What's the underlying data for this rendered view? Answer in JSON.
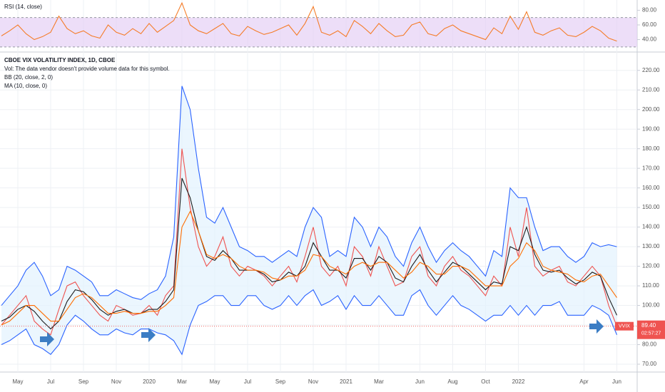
{
  "chart_data": [
    {
      "type": "line",
      "title": "RSI (14, close)",
      "ylim": [
        24,
        94
      ],
      "yticks": [
        {
          "value": 40,
          "label": "40.00"
        },
        {
          "value": 60,
          "label": "60.00"
        },
        {
          "value": 80,
          "label": "80.00"
        }
      ],
      "band": [
        30,
        70
      ],
      "band_color": "#e6d0f5",
      "series": [
        {
          "name": "RSI",
          "color": "#f57c28",
          "values": [
            45,
            52,
            60,
            48,
            40,
            44,
            50,
            72,
            55,
            48,
            52,
            45,
            42,
            60,
            50,
            46,
            55,
            48,
            62,
            50,
            58,
            66,
            90,
            60,
            52,
            48,
            55,
            62,
            48,
            45,
            58,
            52,
            47,
            50,
            55,
            60,
            46,
            62,
            85,
            50,
            46,
            52,
            44,
            66,
            58,
            48,
            62,
            52,
            44,
            46,
            60,
            64,
            48,
            45,
            55,
            60,
            52,
            48,
            44,
            40,
            56,
            48,
            72,
            54,
            78,
            50,
            46,
            52,
            56,
            46,
            44,
            50,
            58,
            52,
            42,
            38
          ]
        }
      ],
      "grid": true
    },
    {
      "type": "line",
      "title": "CBOE VIX VOLATILITY INDEX, 1D, CBOE",
      "subtitles": [
        "Vol: The data vendor doesn't provide volume data for this symbol.",
        "BB (20, close, 2, 0)",
        "MA (10, close, 0)"
      ],
      "categories": [
        null,
        null,
        "May",
        null,
        null,
        null,
        "Jul",
        null,
        null,
        null,
        "Sep",
        null,
        null,
        null,
        "Nov",
        null,
        null,
        null,
        "2020",
        null,
        null,
        null,
        "Mar",
        null,
        null,
        null,
        "May",
        null,
        null,
        null,
        "Jul",
        null,
        null,
        null,
        "Sep",
        null,
        null,
        null,
        "Nov",
        null,
        null,
        null,
        "2021",
        null,
        null,
        null,
        "Mar",
        null,
        null,
        null,
        null,
        "Jun",
        null,
        null,
        null,
        "Aug",
        null,
        null,
        null,
        "Oct",
        null,
        null,
        null,
        "2022",
        null,
        null,
        null,
        null,
        null,
        null,
        null,
        "Apr",
        null,
        null,
        null,
        "Jun"
      ],
      "ylim": [
        66,
        229
      ],
      "yticks": [
        {
          "value": 70,
          "label": "70.00"
        },
        {
          "value": 80,
          "label": "80.00"
        },
        {
          "value": 90,
          "label": "90.00"
        },
        {
          "value": 100,
          "label": "100.00"
        },
        {
          "value": 110,
          "label": "110.00"
        },
        {
          "value": 120,
          "label": "120.00"
        },
        {
          "value": 130,
          "label": "130.00"
        },
        {
          "value": 140,
          "label": "140.00"
        },
        {
          "value": 150,
          "label": "150.00"
        },
        {
          "value": 160,
          "label": "160.00"
        },
        {
          "value": 170,
          "label": "170.00"
        },
        {
          "value": 180,
          "label": "180.00"
        },
        {
          "value": 190,
          "label": "190.00"
        },
        {
          "value": 200,
          "label": "200.00"
        },
        {
          "value": 210,
          "label": "210.00"
        },
        {
          "value": 220,
          "label": "220.00"
        }
      ],
      "grid": true,
      "band_fill": "#e3f2fd",
      "series": [
        {
          "name": "VVIX",
          "color": "#ef5350",
          "values": [
            90,
            95,
            100,
            105,
            92,
            88,
            85,
            98,
            110,
            112,
            105,
            100,
            95,
            92,
            100,
            98,
            95,
            96,
            100,
            95,
            105,
            110,
            180,
            150,
            130,
            120,
            125,
            135,
            120,
            115,
            120,
            118,
            115,
            110,
            115,
            120,
            112,
            125,
            140,
            120,
            115,
            120,
            110,
            130,
            125,
            115,
            130,
            120,
            110,
            112,
            125,
            130,
            115,
            110,
            120,
            125,
            118,
            115,
            110,
            105,
            115,
            110,
            140,
            125,
            150,
            120,
            115,
            118,
            120,
            112,
            110,
            115,
            120,
            115,
            100,
            89.4
          ],
          "value_labels": [
            null,
            null,
            null,
            null,
            null,
            null,
            null,
            null,
            null,
            null,
            null,
            null,
            null,
            null,
            null,
            null,
            null,
            null,
            null,
            null,
            null,
            null,
            null,
            null,
            null,
            null,
            null,
            null,
            null,
            null,
            null,
            null,
            null,
            null,
            null,
            null,
            null,
            null,
            null,
            null,
            null,
            null,
            null,
            null,
            null,
            null,
            null,
            null,
            null,
            null,
            null,
            null,
            null,
            null,
            null,
            null,
            null,
            null,
            null,
            null,
            null,
            null,
            null,
            null,
            null,
            null,
            null,
            null,
            null,
            null,
            null,
            null,
            null,
            null,
            null,
            "89.40"
          ],
          "countdown": "02:57:27"
        },
        {
          "name": "MA",
          "color": "#1b1b1b",
          "values": [
            92,
            94,
            98,
            100,
            97,
            92,
            88,
            92,
            102,
            108,
            107,
            103,
            98,
            95,
            97,
            98,
            96,
            96,
            98,
            98,
            102,
            108,
            165,
            155,
            138,
            125,
            123,
            128,
            124,
            118,
            118,
            118,
            116,
            112,
            113,
            117,
            115,
            120,
            132,
            125,
            118,
            118,
            114,
            124,
            124,
            118,
            125,
            122,
            114,
            112,
            120,
            126,
            118,
            112,
            117,
            122,
            120,
            116,
            112,
            108,
            112,
            111,
            130,
            128,
            140,
            126,
            118,
            117,
            118,
            114,
            111,
            113,
            117,
            115,
            104,
            95
          ]
        },
        {
          "name": "BB basis",
          "color": "#ff6d00",
          "values": [
            90,
            92,
            96,
            100,
            100,
            96,
            92,
            92,
            98,
            104,
            106,
            104,
            100,
            96,
            96,
            97,
            96,
            96,
            97,
            97,
            100,
            104,
            140,
            148,
            138,
            126,
            124,
            126,
            124,
            120,
            118,
            118,
            117,
            114,
            113,
            115,
            115,
            118,
            126,
            125,
            120,
            118,
            116,
            120,
            122,
            120,
            122,
            122,
            118,
            114,
            117,
            122,
            120,
            116,
            116,
            120,
            120,
            118,
            114,
            110,
            110,
            110,
            120,
            124,
            132,
            128,
            120,
            118,
            117,
            116,
            113,
            112,
            115,
            116,
            110,
            104
          ]
        },
        {
          "name": "BB upper",
          "color": "#2962ff",
          "values": [
            100,
            105,
            110,
            118,
            122,
            115,
            105,
            108,
            120,
            118,
            115,
            112,
            105,
            105,
            108,
            106,
            104,
            103,
            106,
            108,
            115,
            135,
            212,
            200,
            170,
            145,
            142,
            150,
            140,
            130,
            128,
            125,
            125,
            122,
            125,
            128,
            125,
            140,
            150,
            145,
            125,
            128,
            125,
            145,
            140,
            130,
            140,
            135,
            125,
            120,
            132,
            140,
            130,
            122,
            128,
            132,
            128,
            125,
            120,
            115,
            128,
            125,
            160,
            155,
            155,
            140,
            128,
            130,
            130,
            125,
            122,
            125,
            132,
            130,
            131,
            130
          ]
        },
        {
          "name": "BB lower",
          "color": "#2962ff",
          "values": [
            80,
            82,
            85,
            88,
            80,
            78,
            75,
            80,
            90,
            95,
            92,
            88,
            85,
            85,
            88,
            86,
            85,
            88,
            88,
            86,
            85,
            82,
            75,
            90,
            100,
            102,
            105,
            105,
            100,
            100,
            105,
            105,
            100,
            98,
            100,
            105,
            100,
            105,
            108,
            100,
            102,
            105,
            98,
            105,
            100,
            100,
            105,
            100,
            95,
            95,
            105,
            108,
            100,
            95,
            100,
            105,
            100,
            98,
            95,
            92,
            95,
            95,
            100,
            95,
            100,
            95,
            100,
            100,
            102,
            95,
            95,
            95,
            100,
            98,
            95,
            85
          ]
        }
      ]
    }
  ]
}
